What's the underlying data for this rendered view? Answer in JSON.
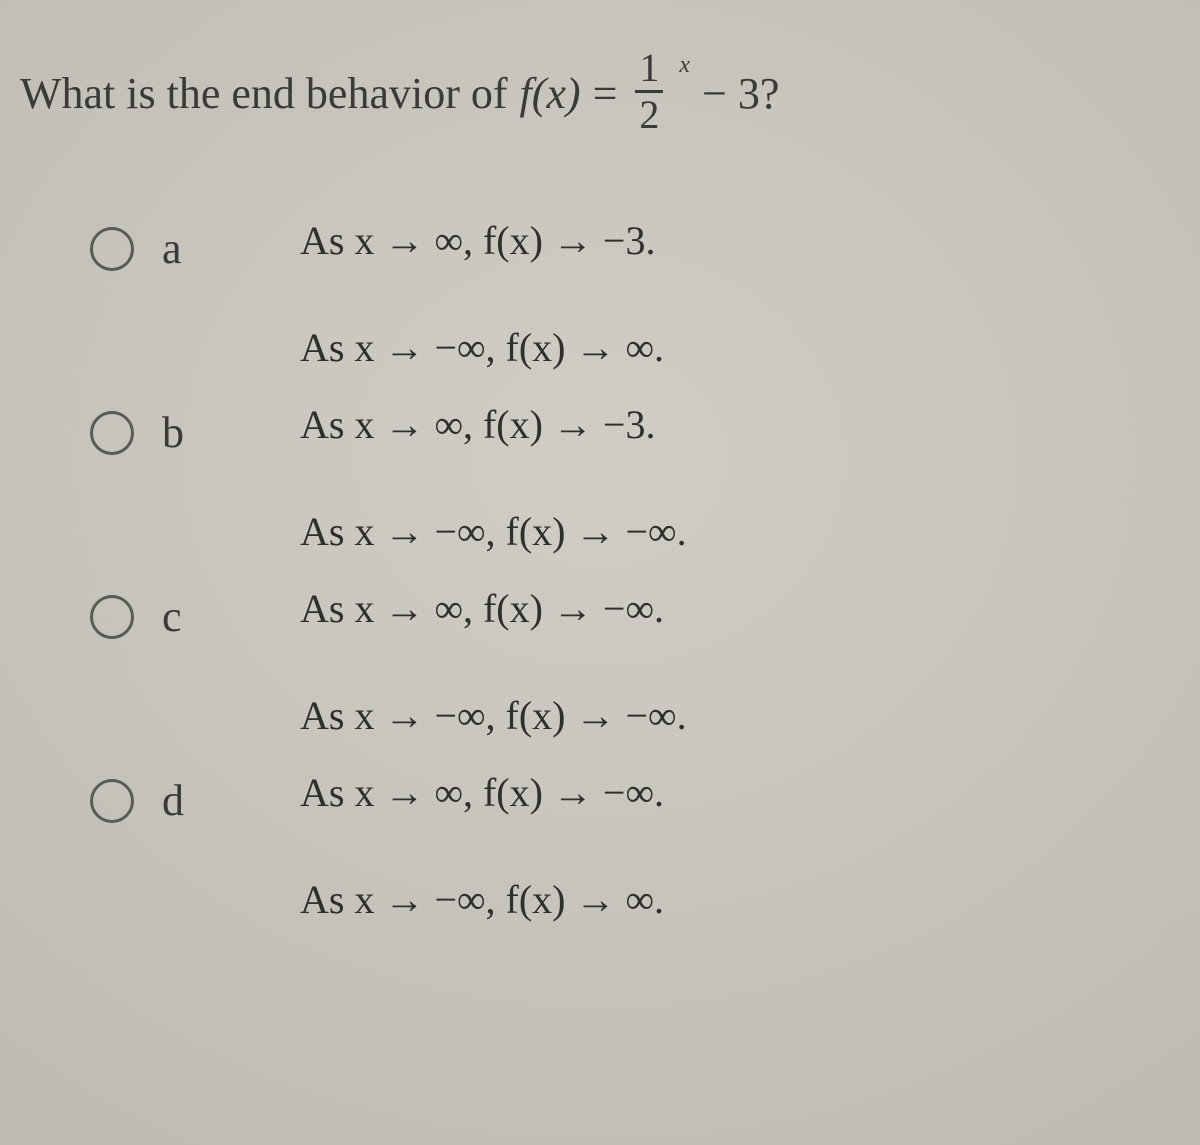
{
  "question": {
    "prefix": "What is the end behavior of ",
    "func": "f(x)",
    "equals": " = ",
    "frac_num": "1",
    "frac_den": "2",
    "exponent": "x",
    "suffix": " − 3?"
  },
  "options": [
    {
      "label": "a",
      "lines": [
        "As x → ∞,  f(x) → −3.",
        "As x → −∞,  f(x) → ∞."
      ]
    },
    {
      "label": "b",
      "lines": [
        "As x → ∞,  f(x) → −3.",
        "As x → −∞,  f(x) → −∞."
      ]
    },
    {
      "label": "c",
      "lines": [
        "As x → ∞,  f(x) → −∞.",
        "As x → −∞,  f(x) → −∞."
      ]
    },
    {
      "label": "d",
      "lines": [
        "As x → ∞,  f(x) → −∞.",
        "As x → −∞,  f(x) → ∞."
      ]
    }
  ],
  "styling": {
    "background_color": "#c6c3bc",
    "text_color": "#3a3a38",
    "question_fontsize": 44,
    "option_label_fontsize": 44,
    "math_fontsize": 40,
    "radio_diameter": 38,
    "radio_border_color": "#5a5a56",
    "font_family": "Georgia, 'Times New Roman', serif"
  }
}
